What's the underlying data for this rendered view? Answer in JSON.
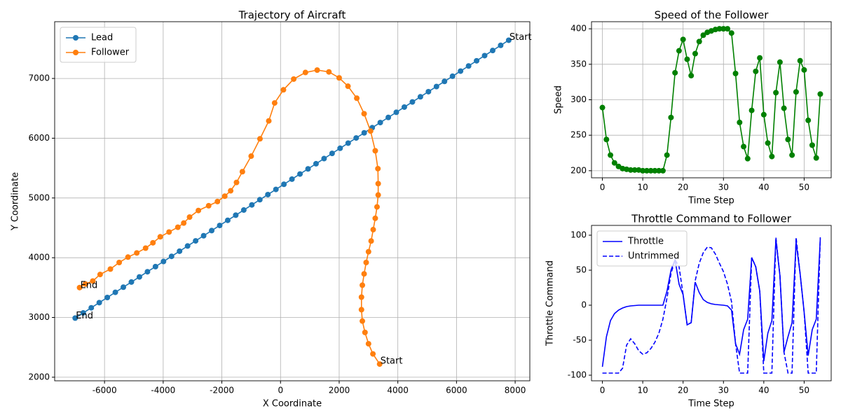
{
  "chart_data": [
    {
      "type": "line",
      "title": "Trajectory of Aircraft",
      "xlabel": "X Coordinate",
      "ylabel": "Y Coordinate",
      "xlim": [
        -7700,
        8500
      ],
      "ylim": [
        1940,
        7950
      ],
      "xticks": [
        -6000,
        -4000,
        -2000,
        0,
        2000,
        4000,
        6000,
        8000
      ],
      "yticks": [
        2000,
        3000,
        4000,
        5000,
        6000,
        7000
      ],
      "grid": true,
      "legend": "upper left",
      "marker": "o",
      "series": [
        {
          "name": "Lead",
          "color": "#1f77b4",
          "start_label": "Start",
          "end_label": "End",
          "x": [
            7780,
            7506,
            7233,
            6959,
            6685,
            6412,
            6138,
            5864,
            5590,
            5317,
            5043,
            4769,
            4496,
            4222,
            3948,
            3675,
            3401,
            3127,
            2853,
            2580,
            2306,
            2032,
            1759,
            1485,
            1211,
            938,
            664,
            390,
            116,
            -157,
            -431,
            -705,
            -978,
            -1252,
            -1526,
            -1800,
            -2073,
            -2347,
            -2621,
            -2894,
            -3168,
            -3442,
            -3715,
            -3989,
            -4263,
            -4537,
            -4810,
            -5084,
            -5358,
            -5631,
            -5905,
            -6179,
            -6452,
            -6726,
            -7000
          ],
          "values": [
            7640,
            7554,
            7468,
            7382,
            7296,
            7209,
            7123,
            7037,
            6951,
            6865,
            6779,
            6693,
            6607,
            6521,
            6434,
            6348,
            6262,
            6176,
            6090,
            6004,
            5918,
            5832,
            5746,
            5659,
            5573,
            5487,
            5401,
            5315,
            5229,
            5143,
            5057,
            4971,
            4884,
            4798,
            4712,
            4626,
            4540,
            4454,
            4368,
            4282,
            4196,
            4109,
            4023,
            3937,
            3851,
            3765,
            3679,
            3593,
            3507,
            3421,
            3334,
            3248,
            3162,
            3076,
            2990
          ]
        },
        {
          "name": "Follower",
          "color": "#ff7f0e",
          "start_label": "Start",
          "end_label": "End",
          "x": [
            3380,
            3150,
            3000,
            2880,
            2790,
            2760,
            2760,
            2790,
            2850,
            2920,
            3000,
            3090,
            3160,
            3230,
            3290,
            3330,
            3330,
            3320,
            3230,
            3070,
            2850,
            2600,
            2300,
            2000,
            1650,
            1250,
            850,
            450,
            100,
            -200,
            -400,
            -700,
            -1000,
            -1300,
            -1500,
            -1700,
            -1900,
            -2150,
            -2450,
            -2800,
            -3100,
            -3300,
            -3500,
            -3800,
            -4100,
            -4350,
            -4600,
            -4900,
            -5200,
            -5500,
            -5800,
            -6150,
            -6400,
            -6650,
            -6850
          ],
          "values": [
            2220,
            2390,
            2560,
            2750,
            2940,
            3130,
            3340,
            3540,
            3730,
            3920,
            4100,
            4280,
            4470,
            4660,
            4850,
            5050,
            5240,
            5490,
            5790,
            6120,
            6410,
            6670,
            6870,
            7010,
            7110,
            7140,
            7100,
            6990,
            6810,
            6590,
            6290,
            5990,
            5700,
            5440,
            5260,
            5120,
            5030,
            4940,
            4870,
            4790,
            4680,
            4580,
            4510,
            4430,
            4350,
            4250,
            4160,
            4080,
            4010,
            3920,
            3810,
            3720,
            3610,
            3560,
            3500
          ]
        }
      ]
    },
    {
      "type": "line",
      "title": "Speed of the Follower",
      "xlabel": "Time Step",
      "ylabel": "Speed",
      "xlim": [
        -2.7,
        56.7
      ],
      "ylim": [
        190,
        410
      ],
      "xticks": [
        0,
        10,
        20,
        30,
        40,
        50
      ],
      "yticks": [
        200,
        250,
        300,
        350,
        400
      ],
      "grid": true,
      "marker": "o",
      "color": "#008000",
      "x": [
        0,
        1,
        2,
        3,
        4,
        5,
        6,
        7,
        8,
        9,
        10,
        11,
        12,
        13,
        14,
        15,
        16,
        17,
        18,
        19,
        20,
        21,
        22,
        23,
        24,
        25,
        26,
        27,
        28,
        29,
        30,
        31,
        32,
        33,
        34,
        35,
        36,
        37,
        38,
        39,
        40,
        41,
        42,
        43,
        44,
        45,
        46,
        47,
        48,
        49,
        50,
        51,
        52,
        53,
        54
      ],
      "values": [
        289,
        244,
        222,
        211,
        206,
        203,
        202,
        201,
        201,
        201,
        200,
        200,
        200,
        200,
        200,
        200,
        222,
        275,
        338,
        369,
        385,
        357,
        334,
        365,
        382,
        391,
        395,
        397,
        399,
        400,
        400,
        400,
        394,
        337,
        268,
        234,
        217,
        285,
        340,
        359,
        279,
        239,
        220,
        310,
        353,
        288,
        244,
        222,
        311,
        355,
        342,
        271,
        236,
        218,
        308
      ]
    },
    {
      "type": "line",
      "title": "Throttle Command to Follower",
      "xlabel": "Time Step",
      "ylabel": "Throttle Command",
      "xlim": [
        -2.7,
        56.7
      ],
      "ylim": [
        -108,
        114
      ],
      "xticks": [
        0,
        10,
        20,
        30,
        40,
        50
      ],
      "yticks": [
        -100,
        -50,
        0,
        50,
        100
      ],
      "grid": false,
      "legend": "upper left",
      "x": [
        0,
        1,
        2,
        3,
        4,
        5,
        6,
        7,
        8,
        9,
        10,
        11,
        12,
        13,
        14,
        15,
        16,
        17,
        18,
        19,
        20,
        21,
        22,
        23,
        24,
        25,
        26,
        27,
        28,
        29,
        30,
        31,
        32,
        33,
        34,
        35,
        36,
        37,
        38,
        39,
        40,
        41,
        42,
        43,
        44,
        45,
        46,
        47,
        48,
        49,
        50,
        51,
        52,
        53,
        54
      ],
      "series": [
        {
          "name": "Throttle",
          "color": "#0000ff",
          "linestyle": "solid",
          "values": [
            -88,
            -45,
            -22,
            -12,
            -7,
            -4,
            -2,
            -1,
            -0.5,
            0,
            0,
            0,
            0,
            0,
            0,
            0,
            20,
            50,
            65,
            30,
            15,
            -28,
            -25,
            33,
            18,
            8,
            4,
            2,
            1,
            0.5,
            0,
            -1,
            -7,
            -55,
            -70,
            -35,
            -20,
            68,
            55,
            20,
            -80,
            -40,
            -22,
            94,
            42,
            -67,
            -45,
            -25,
            90,
            45,
            -10,
            -72,
            -35,
            -20,
            95
          ]
        },
        {
          "name": "Untrimmed",
          "color": "#0000ff",
          "linestyle": "dashed",
          "values": [
            -97,
            -97,
            -97,
            -97,
            -97,
            -90,
            -57,
            -48,
            -55,
            -65,
            -70,
            -68,
            -62,
            -53,
            -40,
            -20,
            10,
            45,
            65,
            55,
            15,
            -28,
            -25,
            35,
            60,
            75,
            83,
            82,
            73,
            60,
            48,
            30,
            5,
            -55,
            -97,
            -97,
            -97,
            68,
            55,
            20,
            -97,
            -97,
            -97,
            97,
            42,
            -67,
            -97,
            -97,
            97,
            45,
            -10,
            -97,
            -97,
            -97,
            97
          ]
        }
      ]
    }
  ]
}
